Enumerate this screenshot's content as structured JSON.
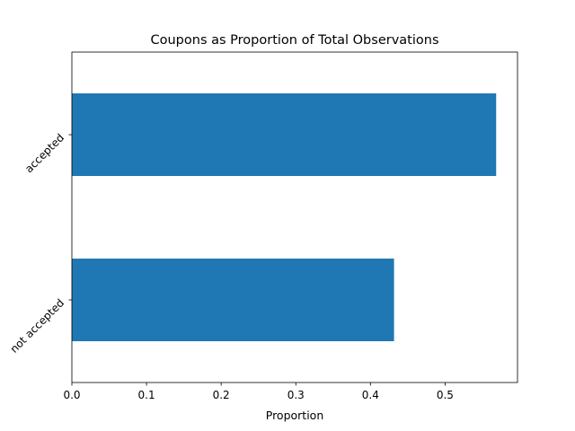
{
  "chart_data": {
    "type": "bar",
    "orientation": "horizontal",
    "title": "Coupons as Proportion of Total Observations",
    "xlabel": "Proportion",
    "ylabel": "",
    "categories": [
      "not accepted",
      "accepted"
    ],
    "values": [
      0.4316,
      0.5684
    ],
    "xlim": [
      0,
      0.597
    ],
    "xticks": [
      0.0,
      0.1,
      0.2,
      0.3,
      0.4,
      0.5
    ],
    "xtick_labels": [
      "0.0",
      "0.1",
      "0.2",
      "0.3",
      "0.4",
      "0.5"
    ],
    "bar_color": "#1f77b4",
    "grid": false,
    "legend": "none"
  }
}
